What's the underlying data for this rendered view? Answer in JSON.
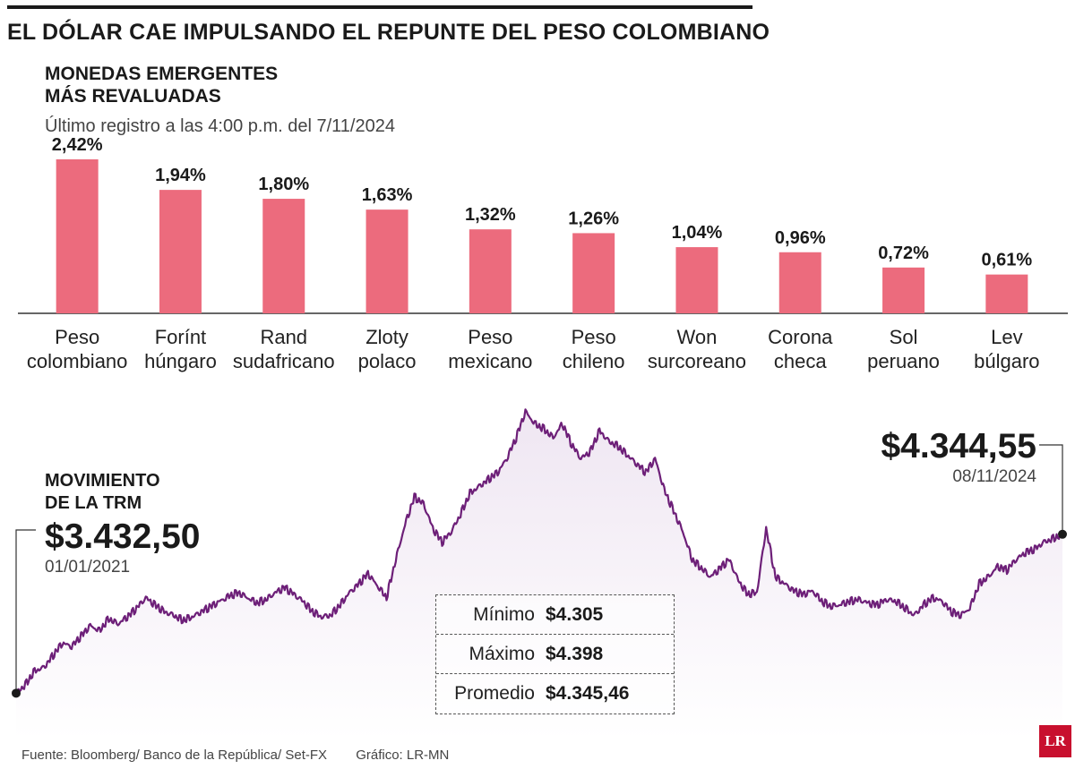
{
  "header": {
    "title": "EL DÓLAR CAE IMPULSANDO EL REPUNTE DEL PESO COLOMBIANO"
  },
  "bar_section": {
    "subtitle_line1": "MONEDAS EMERGENTES",
    "subtitle_line2": "MÁS REVALUADAS",
    "note": "Último registro a las 4:00 p.m. del 7/11/2024"
  },
  "trm_section": {
    "label_line1": "MOVIMIENTO",
    "label_line2": "DE LA TRM",
    "start_value": "$3.432,50",
    "start_date": "01/01/2021",
    "end_value": "$4.344,55",
    "end_date": "08/11/2024"
  },
  "stats": {
    "min_label": "Mínimo",
    "min_value": "$4.305",
    "max_label": "Máximo",
    "max_value": "$4.398",
    "avg_label": "Promedio",
    "avg_value": "$4.345,46"
  },
  "footer": {
    "source": "Fuente: Bloomberg/ Banco de la República/ Set-FX",
    "graphic": "Gráfico: LR-MN",
    "logo": "LR"
  },
  "colors": {
    "bar": "#ec6b7d",
    "line": "#6d1f78",
    "area": "#efe6f2"
  },
  "chart_data": [
    {
      "type": "bar",
      "title": "MONEDAS EMERGENTES MÁS REVALUADAS",
      "categories": [
        [
          "Peso",
          "colombiano"
        ],
        [
          "Forínt",
          "húngaro"
        ],
        [
          "Rand",
          "sudafricano"
        ],
        [
          "Zloty",
          "polaco"
        ],
        [
          "Peso",
          "mexicano"
        ],
        [
          "Peso",
          "chileno"
        ],
        [
          "Won",
          "surcoreano"
        ],
        [
          "Corona",
          "checa"
        ],
        [
          "Sol",
          "peruano"
        ],
        [
          "Lev",
          "búlgaro"
        ]
      ],
      "values": [
        2.42,
        1.94,
        1.8,
        1.63,
        1.32,
        1.26,
        1.04,
        0.96,
        0.72,
        0.61
      ],
      "labels": [
        "2,42%",
        "1,94%",
        "1,80%",
        "1,63%",
        "1,32%",
        "1,26%",
        "1,04%",
        "0,96%",
        "0,72%",
        "0,61%"
      ],
      "grid": false
    },
    {
      "type": "area",
      "title": "MOVIMIENTO DE LA TRM",
      "x_start": "01/01/2021",
      "x_end": "08/11/2024",
      "ylim": [
        3300,
        5100
      ],
      "grid": false,
      "series": [
        {
          "values": [
            3432,
            3480,
            3560,
            3580,
            3650,
            3720,
            3700,
            3760,
            3820,
            3790,
            3860,
            3830,
            3870,
            3920,
            3980,
            3940,
            3900,
            3880,
            3850,
            3870,
            3900,
            3930,
            3960,
            3990,
            4010,
            3980,
            3950,
            3970,
            4010,
            4040,
            4000,
            3960,
            3900,
            3870,
            3880,
            3940,
            4010,
            4060,
            4120,
            4050,
            3980,
            4200,
            4400,
            4560,
            4520,
            4380,
            4300,
            4360,
            4460,
            4580,
            4620,
            4660,
            4700,
            4780,
            4900,
            5050,
            4980,
            4950,
            4900,
            4980,
            4860,
            4780,
            4820,
            4940,
            4880,
            4850,
            4800,
            4750,
            4700,
            4780,
            4600,
            4480,
            4360,
            4200,
            4150,
            4100,
            4150,
            4200,
            4080,
            4000,
            4010,
            4380,
            4100,
            4060,
            4020,
            4000,
            4020,
            3960,
            3930,
            3940,
            3960,
            3970,
            3950,
            3940,
            3970,
            3960,
            3920,
            3880,
            3940,
            3980,
            3960,
            3900,
            3880,
            3920,
            4060,
            4100,
            4160,
            4140,
            4200,
            4240,
            4260,
            4300,
            4320,
            4345
          ]
        }
      ]
    }
  ]
}
